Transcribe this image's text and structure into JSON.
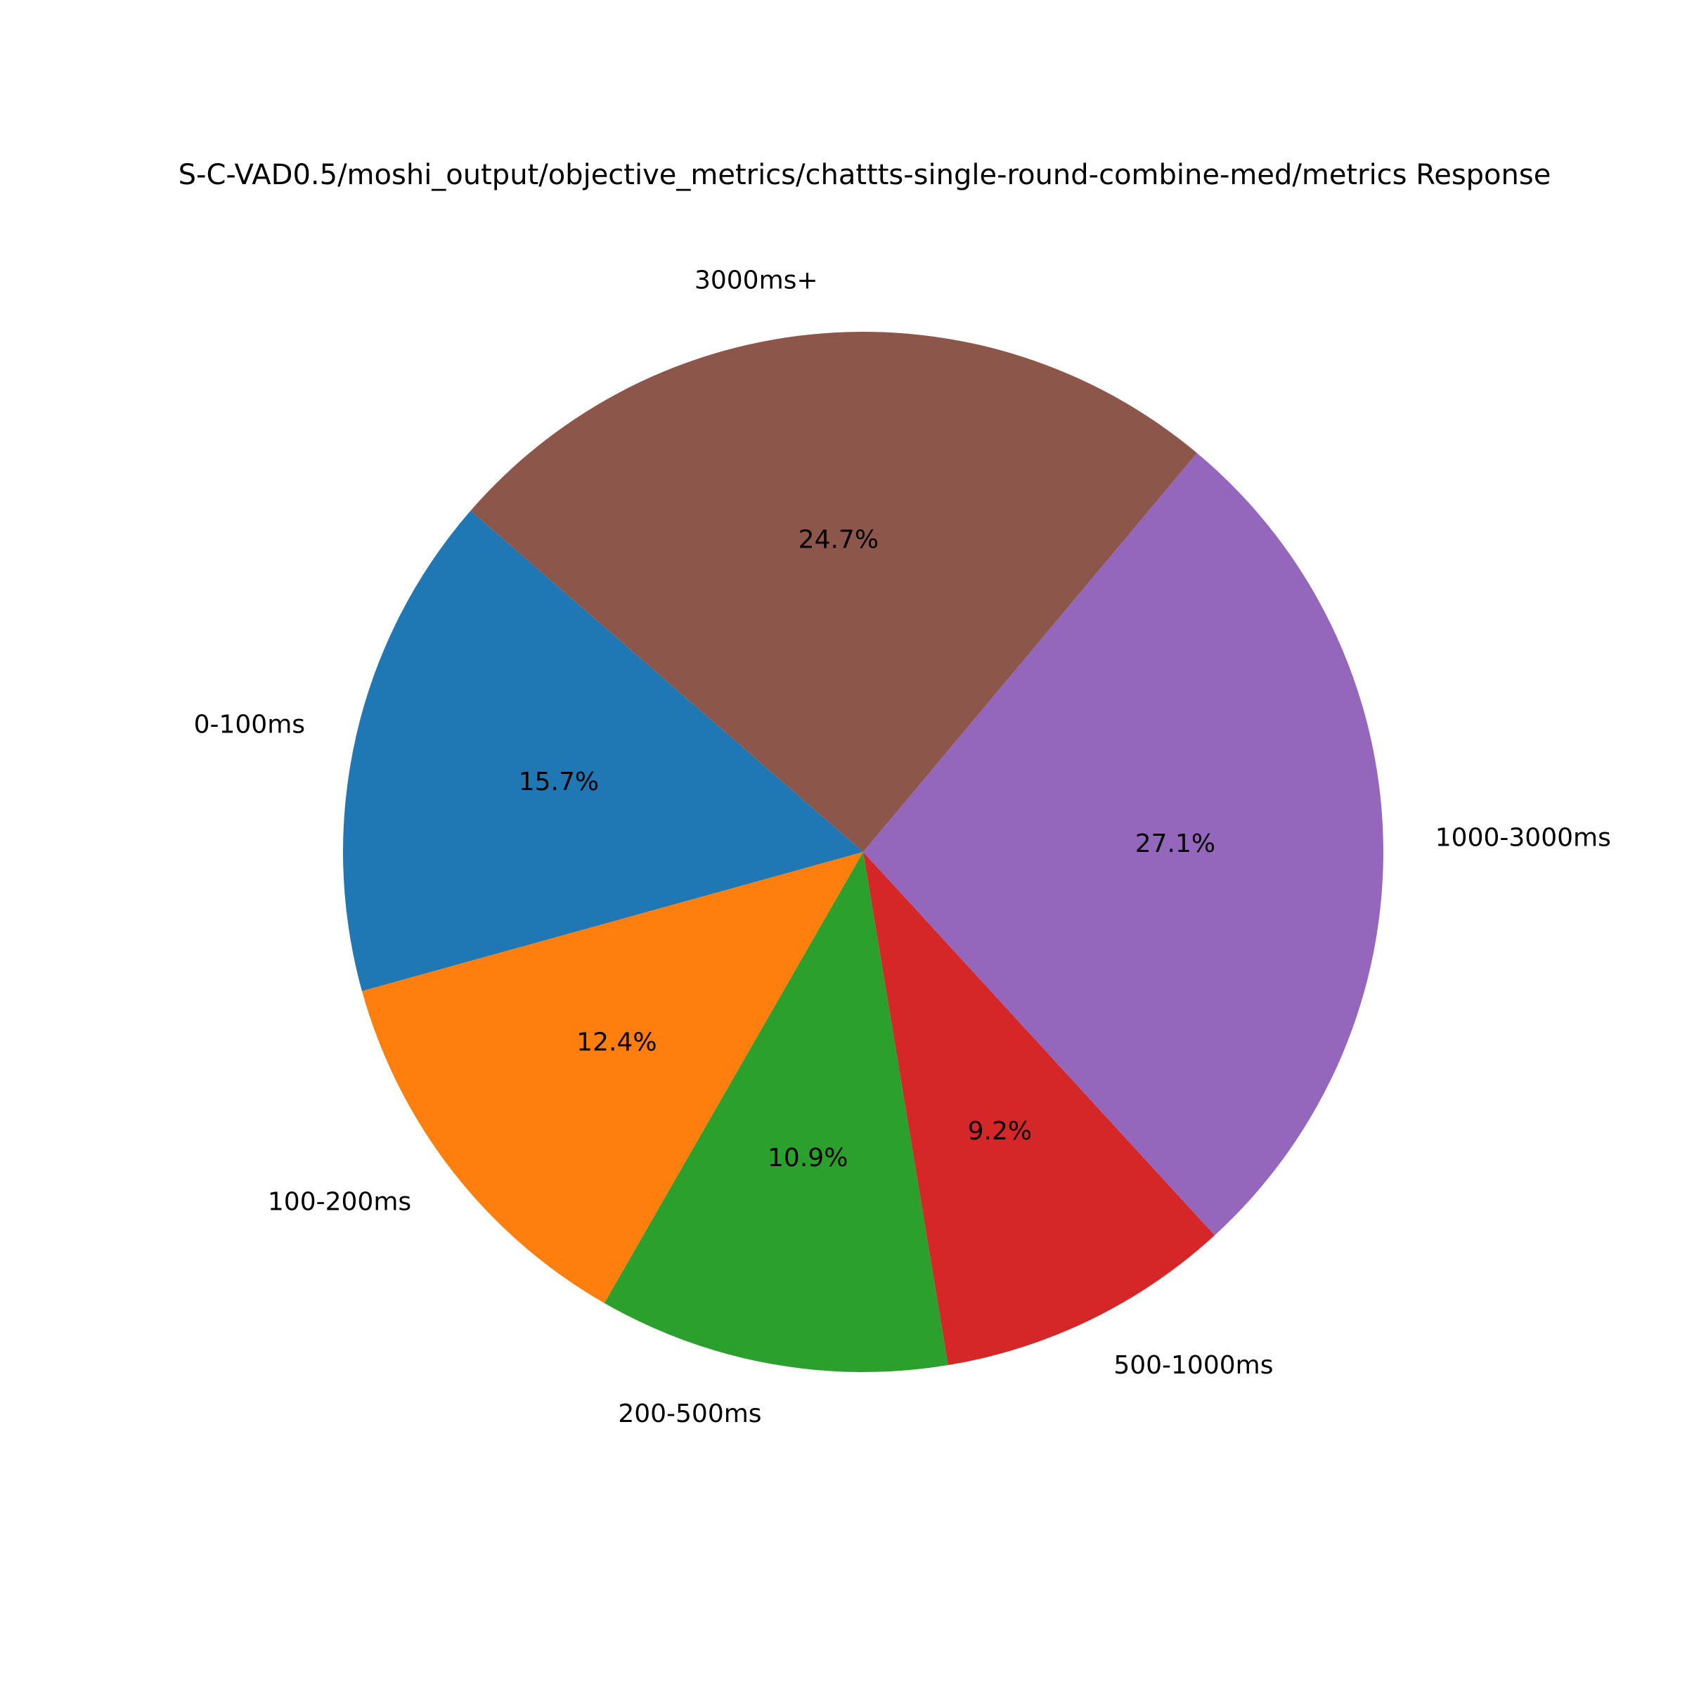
{
  "chart_data": {
    "type": "pie",
    "title": "S-C-VAD0.5/moshi_output/objective_metrics/chattts-single-round-combine-med/metrics Response",
    "categories": [
      "0-100ms",
      "100-200ms",
      "200-500ms",
      "500-1000ms",
      "1000-3000ms",
      "3000ms+"
    ],
    "values": [
      15.7,
      12.4,
      10.9,
      9.2,
      27.1,
      24.7
    ],
    "percent_labels": [
      "15.7%",
      "12.4%",
      "10.9%",
      "9.2%",
      "27.1%",
      "24.7%"
    ],
    "colors": [
      "#1f77b4",
      "#ff7f0e",
      "#2ca02c",
      "#d62728",
      "#9467bd",
      "#8c564b"
    ],
    "start_angle_deg": 139,
    "direction": "counterclockwise"
  }
}
